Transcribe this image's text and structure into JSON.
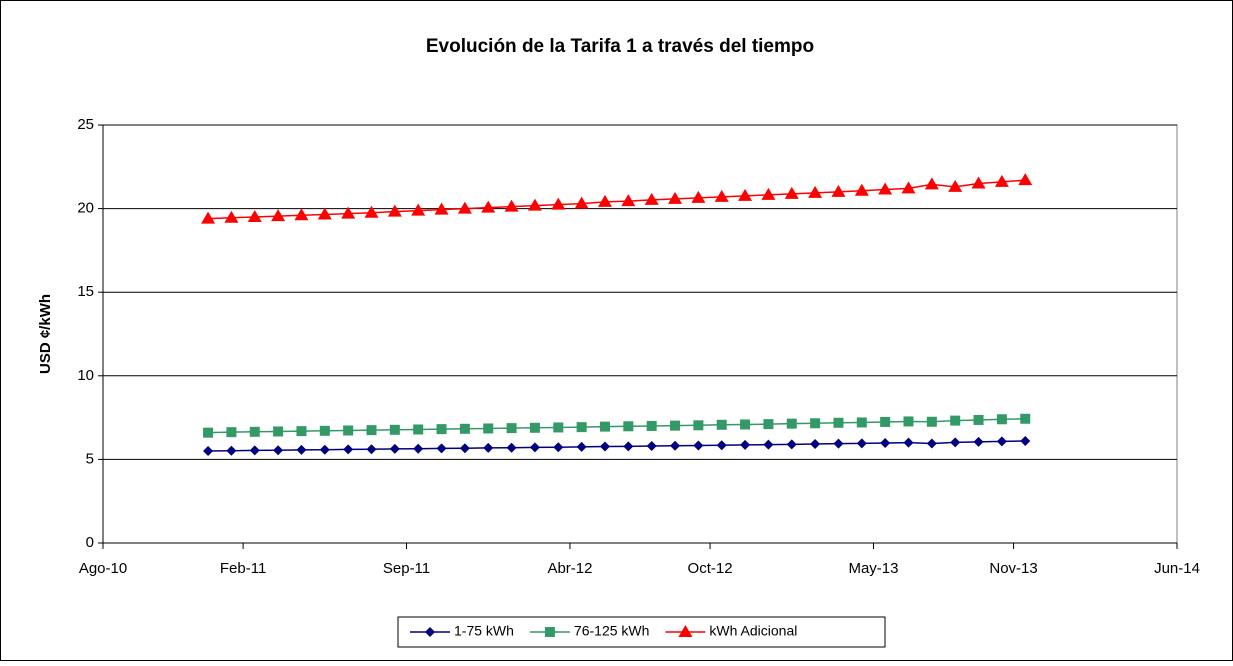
{
  "chart_data": {
    "type": "line",
    "title": "Evolución de la Tarifa 1 a través del tiempo",
    "y_label": "USD ¢/kWh",
    "x": [
      "2010-12",
      "2011-01",
      "2011-02",
      "2011-03",
      "2011-04",
      "2011-05",
      "2011-06",
      "2011-07",
      "2011-08",
      "2011-09",
      "2011-10",
      "2011-11",
      "2011-12",
      "2012-01",
      "2012-02",
      "2012-03",
      "2012-04",
      "2012-05",
      "2012-06",
      "2012-07",
      "2012-08",
      "2012-09",
      "2012-10",
      "2012-11",
      "2012-12",
      "2013-01",
      "2013-02",
      "2013-03",
      "2013-04",
      "2013-05",
      "2013-06",
      "2013-07",
      "2013-08",
      "2013-09",
      "2013-10",
      "2013-11"
    ],
    "series": [
      {
        "name": "1-75 kWh",
        "color": "#000080",
        "marker": "diamond",
        "values": [
          5.5,
          5.52,
          5.54,
          5.55,
          5.57,
          5.58,
          5.6,
          5.61,
          5.63,
          5.64,
          5.66,
          5.67,
          5.69,
          5.7,
          5.72,
          5.73,
          5.75,
          5.77,
          5.78,
          5.8,
          5.82,
          5.83,
          5.85,
          5.87,
          5.88,
          5.9,
          5.92,
          5.94,
          5.96,
          5.98,
          6.0,
          5.95,
          6.02,
          6.05,
          6.08,
          6.1
        ]
      },
      {
        "name": "76-125 kWh",
        "color": "#339966",
        "marker": "square",
        "values": [
          6.6,
          6.63,
          6.65,
          6.67,
          6.69,
          6.71,
          6.73,
          6.75,
          6.77,
          6.79,
          6.81,
          6.83,
          6.85,
          6.87,
          6.89,
          6.91,
          6.93,
          6.96,
          6.98,
          7.0,
          7.02,
          7.04,
          7.07,
          7.09,
          7.11,
          7.14,
          7.16,
          7.19,
          7.21,
          7.24,
          7.27,
          7.25,
          7.32,
          7.36,
          7.4,
          7.43
        ]
      },
      {
        "name": "kWh Adicional",
        "color": "#ff0000",
        "marker": "triangle",
        "values": [
          19.4,
          19.45,
          19.5,
          19.55,
          19.6,
          19.65,
          19.7,
          19.75,
          19.82,
          19.88,
          19.94,
          20.0,
          20.06,
          20.12,
          20.18,
          20.24,
          20.3,
          20.4,
          20.45,
          20.52,
          20.58,
          20.64,
          20.7,
          20.76,
          20.82,
          20.88,
          20.94,
          21.0,
          21.07,
          21.14,
          21.21,
          21.45,
          21.3,
          21.5,
          21.6,
          21.7
        ]
      }
    ],
    "xlim": [
      "2010-08",
      "2014-06"
    ],
    "xticks": [
      {
        "value": "2010-08",
        "label": "Ago-10"
      },
      {
        "value": "2011-02",
        "label": "Feb-11"
      },
      {
        "value": "2011-09",
        "label": "Sep-11"
      },
      {
        "value": "2012-04",
        "label": "Abr-12"
      },
      {
        "value": "2012-10",
        "label": "Oct-12"
      },
      {
        "value": "2013-05",
        "label": "May-13"
      },
      {
        "value": "2013-11",
        "label": "Nov-13"
      },
      {
        "value": "2014-06",
        "label": "Jun-14"
      }
    ],
    "ylim": [
      0,
      25
    ],
    "yticks": [
      0,
      5,
      10,
      15,
      20,
      25
    ],
    "grid": true,
    "legend": "bottom"
  }
}
